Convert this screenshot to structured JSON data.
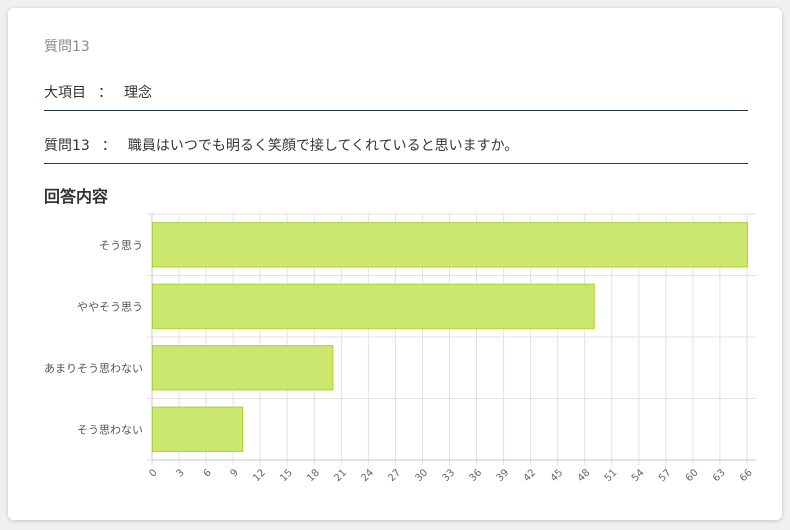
{
  "question_number": "質問13",
  "category": {
    "label": "大項目",
    "separator": "：",
    "value": "理念"
  },
  "question": {
    "label": "質問13",
    "separator": "：",
    "value": "職員はいつでも明るく笑顔で接してくれていると思いますか。"
  },
  "section_title": "回答内容",
  "colors": {
    "bar_fill": "#cbe770",
    "bar_stroke": "#a6d42e",
    "grid": "#e2e2e2",
    "axis": "#c8c8c8"
  },
  "chart_data": {
    "type": "bar",
    "orientation": "horizontal",
    "categories": [
      "そう思う",
      "ややそう思う",
      "あまりそう思わない",
      "そう思わない"
    ],
    "values": [
      66,
      49,
      20,
      10
    ],
    "xlim": [
      0,
      67
    ],
    "xticks": [
      0,
      3,
      6,
      9,
      12,
      15,
      18,
      21,
      24,
      27,
      30,
      33,
      36,
      39,
      42,
      45,
      48,
      51,
      54,
      57,
      60,
      63,
      66
    ],
    "title": "",
    "xlabel": "",
    "ylabel": "",
    "grid": true
  }
}
